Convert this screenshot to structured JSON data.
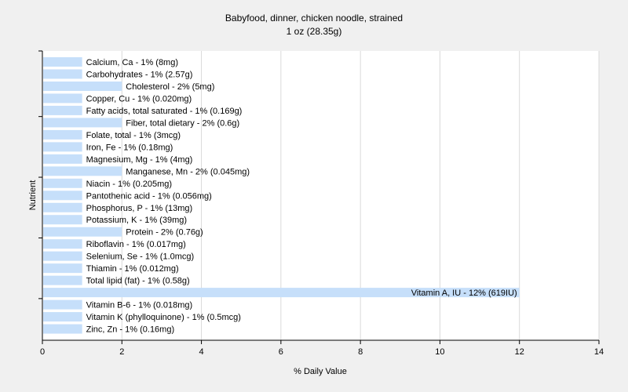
{
  "chart_data": {
    "type": "bar",
    "orientation": "horizontal",
    "title": "Babyfood, dinner, chicken noodle, strained",
    "subtitle": "1 oz (28.35g)",
    "xlabel": "% Daily Value",
    "ylabel": "Nutrient",
    "xlim": [
      0,
      14
    ],
    "xticks": [
      "0",
      "2",
      "4",
      "6",
      "8",
      "10",
      "12",
      "14"
    ],
    "grid": true,
    "colors": {
      "bar": "#c6dffa",
      "grid": "#d9d9d9",
      "plot_bg": "#ffffff",
      "page_bg": "#f0f0f0"
    },
    "categories": [
      "Calcium, Ca",
      "Carbohydrates",
      "Cholesterol",
      "Copper, Cu",
      "Fatty acids, total saturated",
      "Fiber, total dietary",
      "Folate, total",
      "Iron, Fe",
      "Magnesium, Mg",
      "Manganese, Mn",
      "Niacin",
      "Pantothenic acid",
      "Phosphorus, P",
      "Potassium, K",
      "Protein",
      "Riboflavin",
      "Selenium, Se",
      "Thiamin",
      "Total lipid (fat)",
      "Vitamin A, IU",
      "Vitamin B-6",
      "Vitamin K (phylloquinone)",
      "Zinc, Zn"
    ],
    "values": [
      1,
      1,
      2,
      1,
      1,
      2,
      1,
      1,
      1,
      2,
      1,
      1,
      1,
      1,
      2,
      1,
      1,
      1,
      1,
      12,
      1,
      1,
      1
    ],
    "labels": [
      "Calcium, Ca - 1% (8mg)",
      "Carbohydrates - 1% (2.57g)",
      "Cholesterol - 2% (5mg)",
      "Copper, Cu - 1% (0.020mg)",
      "Fatty acids, total saturated - 1% (0.169g)",
      "Fiber, total dietary - 2% (0.6g)",
      "Folate, total - 1% (3mcg)",
      "Iron, Fe - 1% (0.18mg)",
      "Magnesium, Mg - 1% (4mg)",
      "Manganese, Mn - 2% (0.045mg)",
      "Niacin - 1% (0.205mg)",
      "Pantothenic acid - 1% (0.056mg)",
      "Phosphorus, P - 1% (13mg)",
      "Potassium, K - 1% (39mg)",
      "Protein - 2% (0.76g)",
      "Riboflavin - 1% (0.017mg)",
      "Selenium, Se - 1% (1.0mcg)",
      "Thiamin - 1% (0.012mg)",
      "Total lipid (fat) - 1% (0.58g)",
      "Vitamin A, IU - 12% (619IU)",
      "Vitamin B-6 - 1% (0.018mg)",
      "Vitamin K (phylloquinone) - 1% (0.5mcg)",
      "Zinc, Zn - 1% (0.16mg)"
    ]
  }
}
